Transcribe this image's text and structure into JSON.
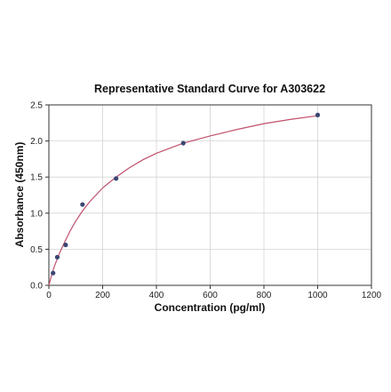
{
  "chart_data": {
    "type": "scatter",
    "title": "Representative Standard Curve for A303622",
    "xlabel": "Concentration (pg/ml)",
    "ylabel": "Absorbance (450nm)",
    "xlim": [
      0,
      1200
    ],
    "ylim": [
      0,
      2.5
    ],
    "x_ticks": [
      "0",
      "200",
      "400",
      "600",
      "800",
      "1000",
      "1200"
    ],
    "y_ticks": [
      "0.0",
      "0.5",
      "1.0",
      "1.5",
      "2.0",
      "2.5"
    ],
    "grid": true,
    "points": [
      {
        "x": 15.6,
        "y": 0.17
      },
      {
        "x": 31.25,
        "y": 0.39
      },
      {
        "x": 62.5,
        "y": 0.56
      },
      {
        "x": 125,
        "y": 1.12
      },
      {
        "x": 250,
        "y": 1.48
      },
      {
        "x": 500,
        "y": 1.97
      },
      {
        "x": 1000,
        "y": 2.36
      }
    ],
    "fit_curve": [
      {
        "x": 0,
        "y": 0.0
      },
      {
        "x": 10,
        "y": 0.14
      },
      {
        "x": 20,
        "y": 0.26
      },
      {
        "x": 40,
        "y": 0.45
      },
      {
        "x": 60,
        "y": 0.61
      },
      {
        "x": 80,
        "y": 0.76
      },
      {
        "x": 100,
        "y": 0.89
      },
      {
        "x": 125,
        "y": 1.03
      },
      {
        "x": 150,
        "y": 1.15
      },
      {
        "x": 200,
        "y": 1.35
      },
      {
        "x": 250,
        "y": 1.5
      },
      {
        "x": 300,
        "y": 1.63
      },
      {
        "x": 350,
        "y": 1.74
      },
      {
        "x": 400,
        "y": 1.83
      },
      {
        "x": 500,
        "y": 1.97
      },
      {
        "x": 600,
        "y": 2.07
      },
      {
        "x": 700,
        "y": 2.16
      },
      {
        "x": 800,
        "y": 2.24
      },
      {
        "x": 900,
        "y": 2.3
      },
      {
        "x": 1000,
        "y": 2.35
      }
    ],
    "colors": {
      "curve": "#c0506c",
      "points": "#3a4673",
      "grid": "#d4d4d4",
      "axis": "#333333"
    }
  }
}
